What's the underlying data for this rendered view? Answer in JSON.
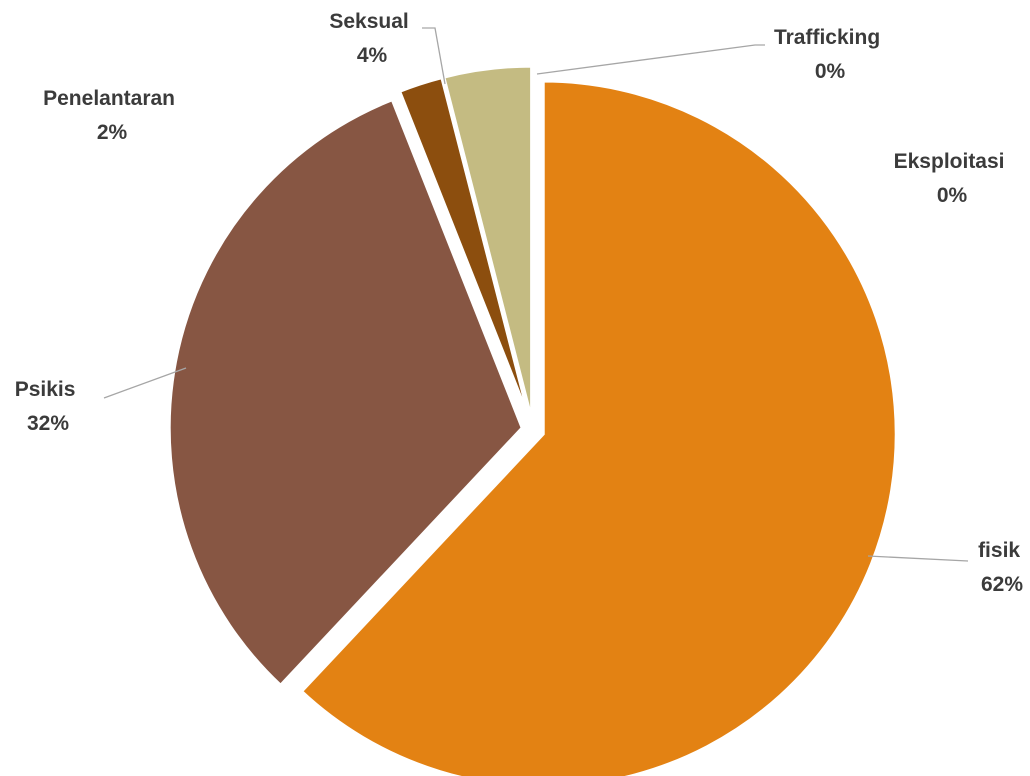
{
  "chart_data": {
    "type": "pie",
    "title": "",
    "categories": [
      "fisik",
      "Psikis",
      "Penelantaran",
      "Seksual",
      "Trafficking",
      "Eksploitasi"
    ],
    "values": [
      62,
      32,
      2,
      4,
      0,
      0
    ],
    "value_labels": [
      "62%",
      "32%",
      "2%",
      "4%",
      "0%",
      "0%"
    ],
    "colors": [
      "#e38213",
      "#875643",
      "#8c4e0e",
      "#c4bb82",
      "#9e3d22",
      "#6b4020"
    ],
    "legend": "none",
    "grid": false
  }
}
